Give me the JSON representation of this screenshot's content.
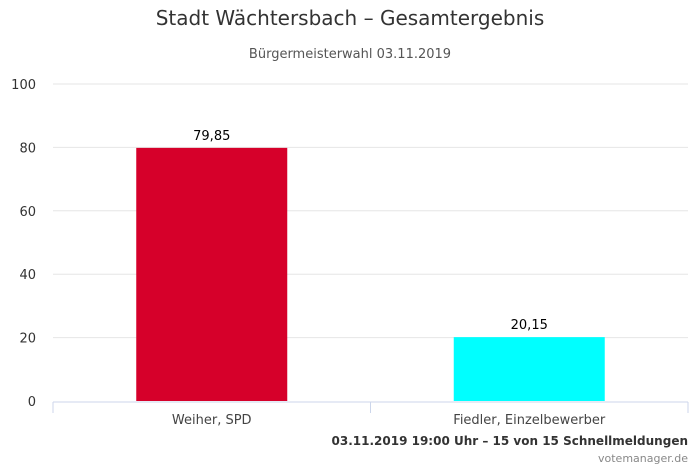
{
  "chart_data": {
    "type": "bar",
    "title": "Stadt Wächtersbach – Gesamtergebnis",
    "subtitle": "Bürgermeisterwahl 03.11.2019",
    "categories": [
      "Weiher, SPD",
      "Fiedler, Einzelbewerber"
    ],
    "values": [
      79.85,
      20.15
    ],
    "data_labels": [
      "79,85",
      "20,15"
    ],
    "colors": [
      "#d6002a",
      "#00ffff"
    ],
    "ylim": [
      0,
      100
    ],
    "yticks": [
      0,
      20,
      40,
      60,
      80,
      100
    ],
    "grid": true,
    "legend": "none"
  },
  "footer": {
    "status": "03.11.2019 19:00 Uhr – 15 von 15 Schnellmeldungen",
    "credit": "votemanager.de"
  }
}
